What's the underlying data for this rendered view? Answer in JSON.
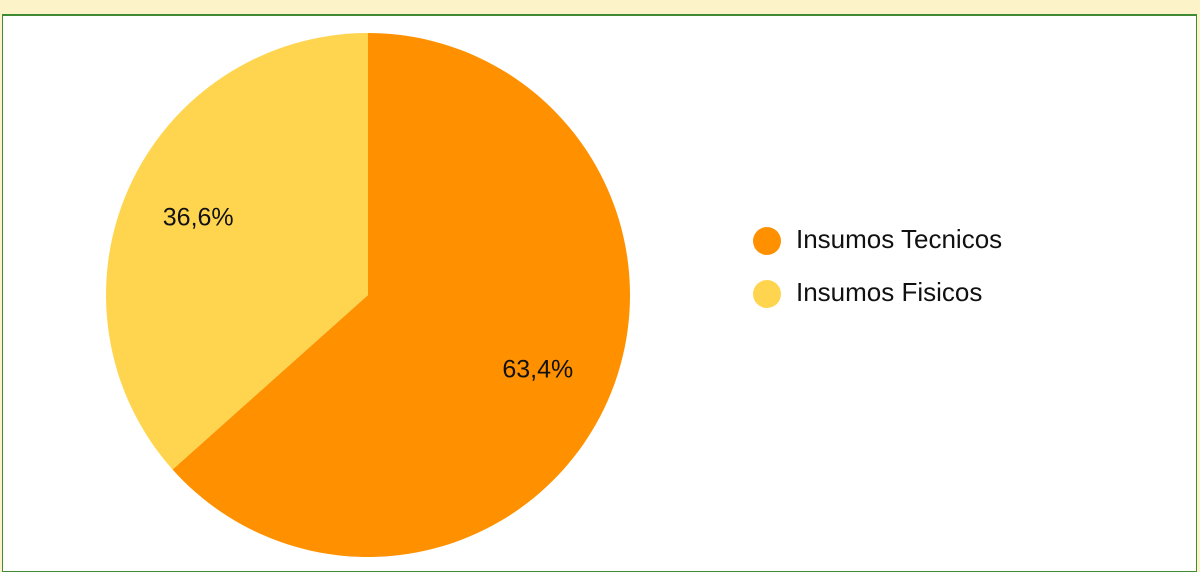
{
  "chart_data": {
    "type": "pie",
    "categories": [
      "Insumos Tecnicos",
      "Insumos Fisicos"
    ],
    "values": [
      63.4,
      36.6
    ],
    "value_labels": [
      "63,4%",
      "36,6%"
    ],
    "colors": [
      "#ff9100",
      "#ffd54f"
    ],
    "legend": "right"
  }
}
